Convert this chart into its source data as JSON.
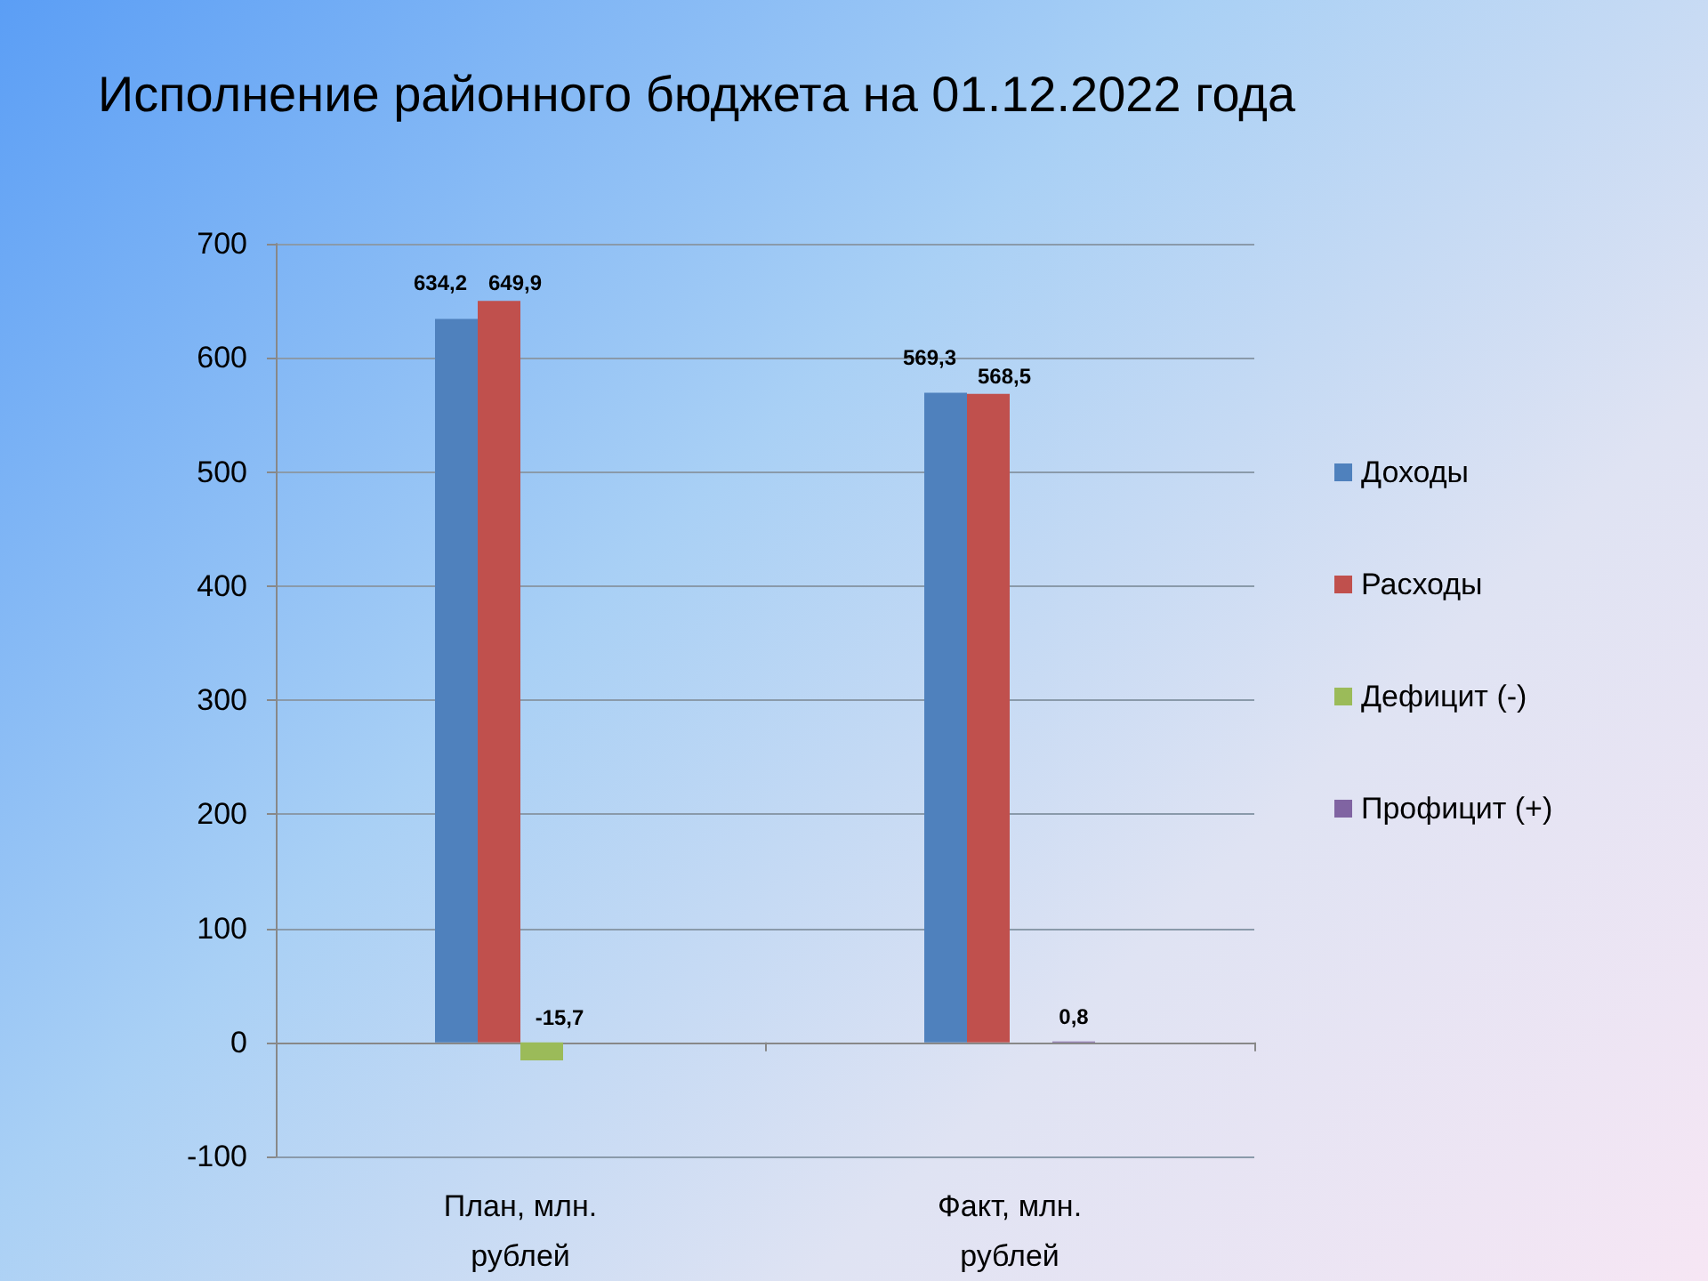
{
  "chart_data": {
    "type": "bar",
    "title": "Исполнение районного бюджета на 01.12.2022 года",
    "categories": [
      "План, млн. рублей",
      "Факт, млн. рублей"
    ],
    "series": [
      {
        "name": "Доходы",
        "color": "#4f81bd",
        "values": [
          634.2,
          569.3
        ],
        "value_labels": [
          "634,2",
          "569,3"
        ]
      },
      {
        "name": "Расходы",
        "color": "#c0504d",
        "values": [
          649.9,
          568.5
        ],
        "value_labels": [
          "649,9",
          "568,5"
        ]
      },
      {
        "name": "Дефицит (-)",
        "color": "#9bbb59",
        "values": [
          -15.7,
          null
        ],
        "value_labels": [
          "-15,7",
          null
        ]
      },
      {
        "name": "Профицит (+)",
        "color": "#8064a2",
        "values": [
          null,
          0.8
        ],
        "value_labels": [
          null,
          "0,8"
        ]
      }
    ],
    "ylim": [
      -100,
      700
    ],
    "yticks": [
      -100,
      0,
      100,
      200,
      300,
      400,
      500,
      600,
      700
    ],
    "grid": "y",
    "legend": "right"
  }
}
